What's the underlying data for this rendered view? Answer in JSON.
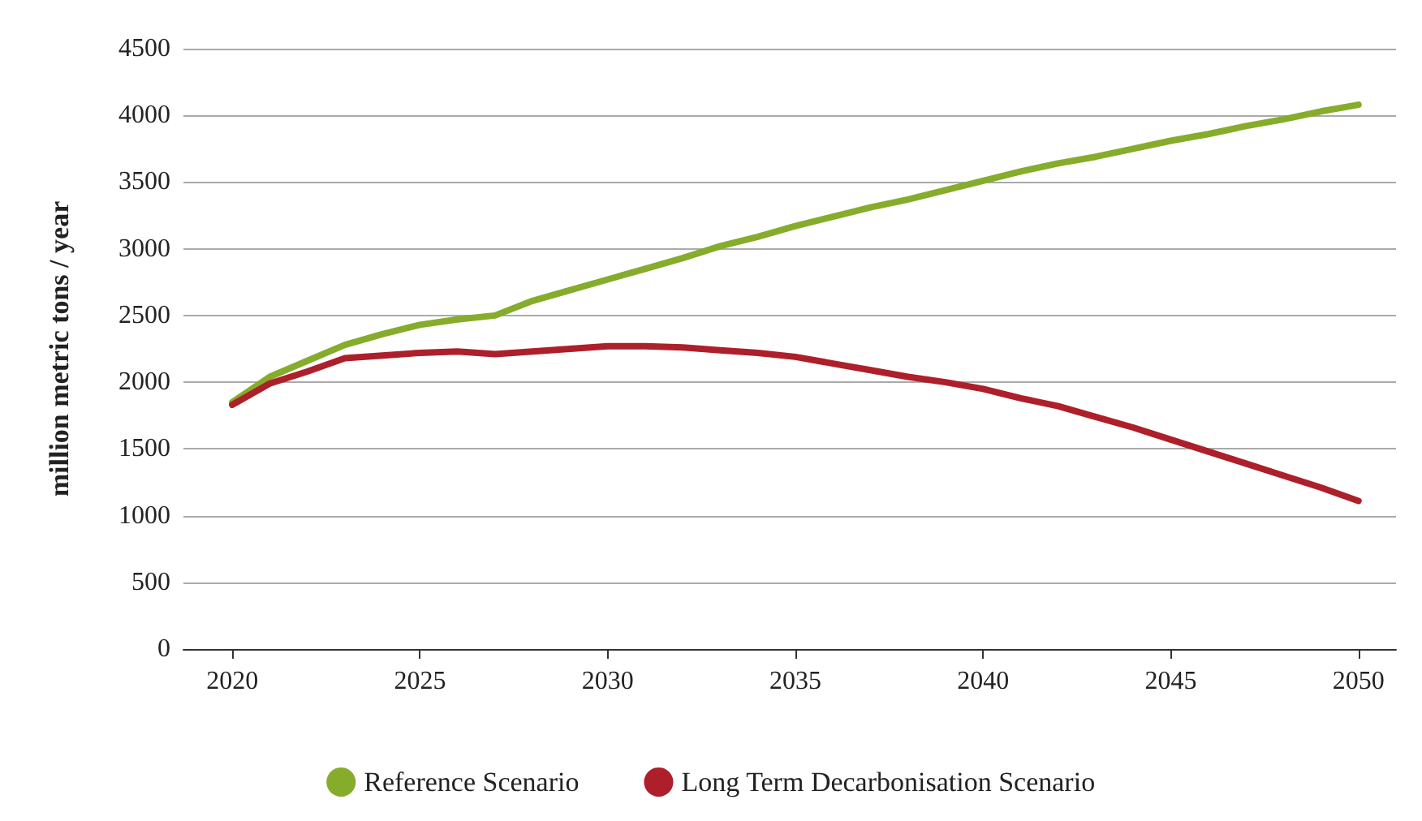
{
  "chart_data": {
    "type": "line",
    "ylabel": "million metric tons / year",
    "x": [
      2020,
      2021,
      2022,
      2023,
      2024,
      2025,
      2026,
      2027,
      2028,
      2029,
      2030,
      2031,
      2032,
      2033,
      2034,
      2035,
      2036,
      2037,
      2038,
      2039,
      2040,
      2041,
      2042,
      2043,
      2044,
      2045,
      2046,
      2047,
      2048,
      2049,
      2050
    ],
    "series": [
      {
        "name": "Reference Scenario",
        "color": "#86ac2c",
        "values": [
          1850,
          2040,
          2160,
          2280,
          2360,
          2430,
          2470,
          2500,
          2610,
          2690,
          2770,
          2850,
          2930,
          3020,
          3090,
          3170,
          3240,
          3310,
          3370,
          3440,
          3510,
          3580,
          3640,
          3690,
          3750,
          3810,
          3860,
          3920,
          3970,
          4030,
          4080
        ]
      },
      {
        "name": "Long Term Decarbonisation Scenario",
        "color": "#ad1f2a",
        "values": [
          1830,
          1990,
          2080,
          2180,
          2200,
          2220,
          2230,
          2210,
          2230,
          2250,
          2270,
          2270,
          2260,
          2240,
          2220,
          2190,
          2140,
          2090,
          2040,
          2000,
          1950,
          1880,
          1820,
          1740,
          1660,
          1570,
          1480,
          1390,
          1300,
          1210,
          1110
        ]
      }
    ],
    "xlim": [
      2018.7,
      2051
    ],
    "xticks": [
      2020,
      2025,
      2030,
      2035,
      2040,
      2045,
      2050
    ],
    "ylim": [
      0,
      4500
    ],
    "yticks": [
      0,
      500,
      1000,
      1500,
      2000,
      2500,
      3000,
      3500,
      4000,
      4500
    ],
    "grid": "y",
    "legend": "bottom",
    "marker": "none",
    "line_style": "solid"
  }
}
